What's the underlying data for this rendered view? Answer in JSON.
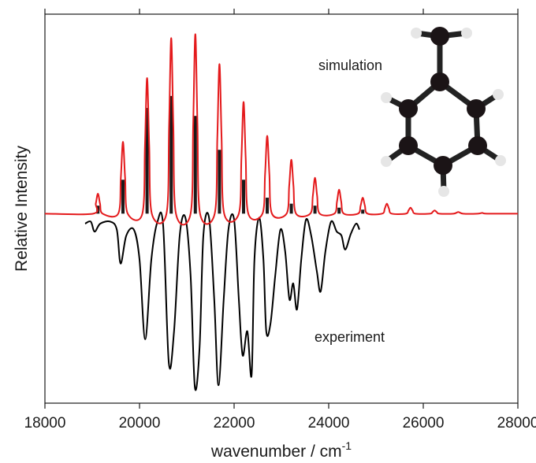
{
  "chart_data": {
    "type": "line",
    "xlabel": "wavenumber / cm",
    "xlabel_superscript": "-1",
    "ylabel": "Relative Intensity",
    "xlim": [
      18000,
      28000
    ],
    "xticks": [
      18000,
      20000,
      22000,
      24000,
      26000,
      28000
    ],
    "ylim": [
      -0.95,
      1.0
    ],
    "series": [
      {
        "name": "simulation",
        "color": "#e41a1c",
        "x": [
          18000,
          19020,
          19075,
          19120,
          19165,
          19220,
          19550,
          19605,
          19650,
          19695,
          19750,
          20060,
          20115,
          20160,
          20205,
          20260,
          20570,
          20625,
          20670,
          20715,
          20770,
          21080,
          21135,
          21180,
          21225,
          21280,
          21590,
          21645,
          21690,
          21735,
          21790,
          22100,
          22155,
          22200,
          22245,
          22300,
          22600,
          22655,
          22700,
          22745,
          22800,
          23110,
          23165,
          23210,
          23255,
          23310,
          23610,
          23665,
          23710,
          23755,
          23810,
          24120,
          24175,
          24220,
          24265,
          24320,
          24620,
          24675,
          24720,
          24765,
          24820,
          25130,
          25185,
          25230,
          25275,
          25330,
          25630,
          25685,
          25730,
          25775,
          25830,
          26140,
          26195,
          26240,
          26285,
          26340,
          26640,
          26740,
          26840,
          27150,
          27250,
          27350,
          28000
        ],
        "values": [
          0,
          0,
          0.05,
          0.1,
          0.05,
          0,
          0,
          0.18,
          0.36,
          0.18,
          0,
          0,
          0.34,
          0.68,
          0.34,
          0,
          0,
          0.44,
          0.88,
          0.44,
          0,
          0,
          0.45,
          0.9,
          0.45,
          0,
          0,
          0.38,
          0.75,
          0.38,
          0,
          0,
          0.28,
          0.56,
          0.28,
          0,
          0,
          0.2,
          0.39,
          0.2,
          0,
          0,
          0.14,
          0.27,
          0.14,
          0,
          0,
          0.09,
          0.18,
          0.09,
          0,
          0,
          0.06,
          0.12,
          0.06,
          0,
          0,
          0.04,
          0.08,
          0.04,
          0,
          0,
          0.025,
          0.05,
          0.025,
          0,
          0,
          0.015,
          0.03,
          0.015,
          0,
          0,
          0.008,
          0.016,
          0.008,
          0,
          0,
          0.008,
          0,
          0,
          0.004,
          0,
          0
        ]
      },
      {
        "type": "stick",
        "color": "#1a1a1a",
        "x": [
          19120,
          19650,
          20160,
          20670,
          21180,
          21690,
          22200,
          22700,
          23210,
          23710,
          24220,
          24720
        ],
        "values": [
          0.04,
          0.17,
          0.53,
          0.59,
          0.49,
          0.32,
          0.17,
          0.08,
          0.05,
          0.04,
          0.03,
          0.02
        ]
      },
      {
        "name": "experiment",
        "color": "#000000",
        "x": [
          18850,
          18970,
          19050,
          19170,
          19380,
          19520,
          19600,
          19720,
          19880,
          20000,
          20120,
          20250,
          20380,
          20500,
          20620,
          20730,
          20850,
          20970,
          21080,
          21170,
          21270,
          21350,
          21470,
          21580,
          21670,
          21780,
          21880,
          22000,
          22100,
          22180,
          22280,
          22370,
          22430,
          22530,
          22620,
          22680,
          22770,
          22870,
          22980,
          23080,
          23170,
          23250,
          23330,
          23420,
          23520,
          23630,
          23750,
          23830,
          23930,
          24050,
          24170,
          24270,
          24350,
          24470,
          24580,
          24650
        ],
        "values": [
          -0.05,
          -0.04,
          -0.09,
          -0.05,
          -0.04,
          -0.08,
          -0.25,
          -0.11,
          -0.08,
          -0.23,
          -0.63,
          -0.23,
          -0.04,
          -0.06,
          -0.75,
          -0.59,
          -0.11,
          -0.02,
          -0.31,
          -0.87,
          -0.67,
          -0.11,
          -0.02,
          -0.43,
          -0.86,
          -0.43,
          -0.08,
          -0.03,
          -0.43,
          -0.71,
          -0.59,
          -0.81,
          -0.23,
          -0.02,
          -0.23,
          -0.59,
          -0.55,
          -0.31,
          -0.08,
          -0.19,
          -0.43,
          -0.35,
          -0.48,
          -0.23,
          -0.03,
          -0.11,
          -0.29,
          -0.39,
          -0.19,
          -0.04,
          -0.09,
          -0.11,
          -0.18,
          -0.1,
          -0.05,
          -0.08
        ]
      }
    ]
  }
}
